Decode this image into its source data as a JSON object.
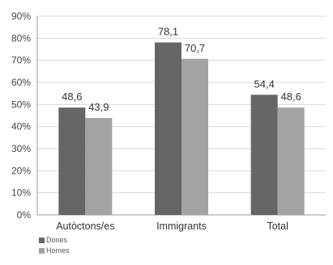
{
  "chart_data": {
    "type": "bar",
    "categories": [
      "Autòctons/es",
      "Immigrants",
      "Total"
    ],
    "series": [
      {
        "name": "Dones",
        "values": [
          48.6,
          78.1,
          54.4
        ],
        "labels": [
          "48,6",
          "78,1",
          "54,4"
        ],
        "color": "#666666"
      },
      {
        "name": "Homes",
        "values": [
          43.9,
          70.7,
          48.6
        ],
        "labels": [
          "43,9",
          "70,7",
          "48,6"
        ],
        "color": "#a3a3a3"
      }
    ],
    "ylim": [
      0,
      90
    ],
    "yticks": [
      0,
      10,
      20,
      30,
      40,
      50,
      60,
      70,
      80,
      90
    ],
    "ytick_labels": [
      "0%",
      "10%",
      "20%",
      "30%",
      "40%",
      "50%",
      "60%",
      "70%",
      "80%",
      "90%"
    ],
    "grid": true,
    "legend_position": "bottom-left",
    "title": "",
    "xlabel": "",
    "ylabel": ""
  }
}
